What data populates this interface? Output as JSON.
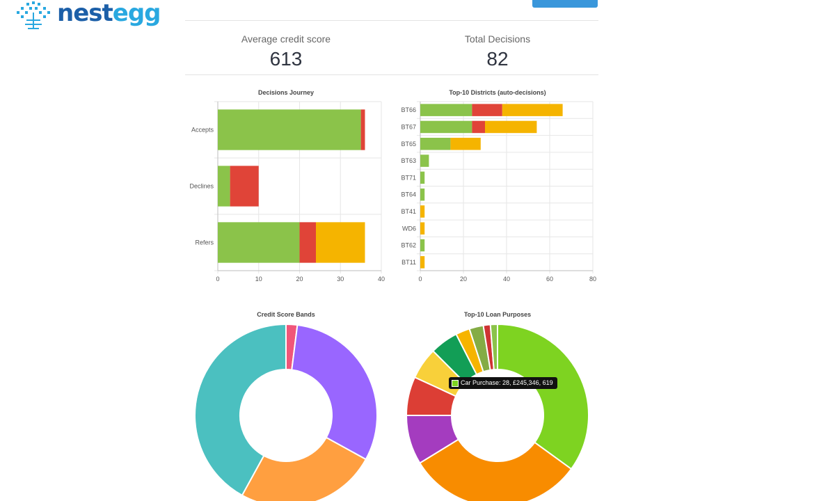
{
  "header": {
    "logo_part1": "nest",
    "logo_part2": "egg"
  },
  "stats": [
    {
      "label": "Average credit score",
      "value": "613"
    },
    {
      "label": "Total Decisions",
      "value": "82"
    }
  ],
  "tooltip": {
    "text": "Car Purchase: 28, £245,346, 619"
  },
  "colors": {
    "accept": "#8bc34a",
    "decline": "#e04438",
    "refer": "#f5b400",
    "brand_dark": "#1c5fa8",
    "brand_light": "#29a8e0"
  },
  "chart_data": [
    {
      "type": "bar",
      "orientation": "horizontal",
      "stacked": true,
      "title": "Decisions Journey",
      "categories": [
        "Accepts",
        "Declines",
        "Refers"
      ],
      "series": [
        {
          "values": [
            35,
            3,
            20
          ],
          "color": "#8bc34a"
        },
        {
          "values": [
            1,
            7,
            4
          ],
          "color": "#e04438"
        },
        {
          "values": [
            0,
            0,
            12
          ],
          "color": "#f5b400"
        }
      ],
      "xlim": [
        0,
        40
      ],
      "xticks": [
        0,
        10,
        20,
        30,
        40
      ],
      "grid": true
    },
    {
      "type": "bar",
      "orientation": "horizontal",
      "stacked": true,
      "title": "Top-10 Districts (auto-decisions)",
      "categories": [
        "BT66",
        "BT67",
        "BT65",
        "BT63",
        "BT71",
        "BT64",
        "BT41",
        "WD6",
        "BT62",
        "BT11"
      ],
      "series": [
        {
          "values": [
            24,
            24,
            14,
            4,
            2,
            2,
            0,
            0,
            2,
            0
          ],
          "color": "#8bc34a"
        },
        {
          "values": [
            14,
            6,
            0,
            0,
            0,
            0,
            0,
            0,
            0,
            0
          ],
          "color": "#e04438"
        },
        {
          "values": [
            28,
            24,
            14,
            0,
            0,
            0,
            2,
            2,
            0,
            2
          ],
          "color": "#f5b400"
        }
      ],
      "xlim": [
        0,
        80
      ],
      "xticks": [
        0,
        20,
        40,
        60,
        80
      ],
      "grid": true
    },
    {
      "type": "pie",
      "donut": true,
      "title": "Credit Score Bands",
      "values": [
        2,
        31,
        25,
        42
      ],
      "colors": [
        "#f0567a",
        "#9966ff",
        "#ff9f40",
        "#4bc0c0"
      ]
    },
    {
      "type": "pie",
      "donut": true,
      "title": "Top-10 Loan Purposes",
      "values": [
        28,
        25,
        7,
        5.5,
        4.5,
        4,
        2,
        2,
        1,
        1
      ],
      "colors": [
        "#7ed321",
        "#f88c00",
        "#a43cbf",
        "#dc3e35",
        "#f8d03a",
        "#129e56",
        "#f6b400",
        "#84ac45",
        "#ce3333",
        "#8bc34a"
      ]
    }
  ]
}
